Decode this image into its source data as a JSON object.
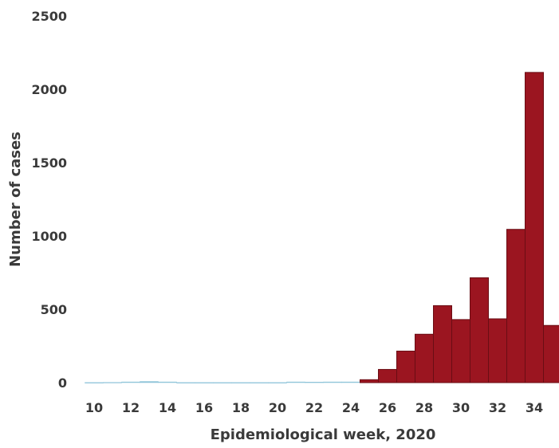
{
  "chart_data": {
    "type": "bar",
    "title": "",
    "xlabel": "Epidemiological week, 2020",
    "ylabel": "Number of cases",
    "ylim": [
      0,
      2500
    ],
    "yticks": [
      0,
      500,
      1000,
      1500,
      2000,
      2500
    ],
    "xticks": [
      10,
      12,
      14,
      16,
      18,
      20,
      22,
      24,
      26,
      28,
      30,
      32,
      34
    ],
    "x": [
      10,
      11,
      12,
      13,
      14,
      15,
      16,
      17,
      18,
      19,
      20,
      21,
      22,
      23,
      24,
      25,
      26,
      27,
      28,
      29,
      30,
      31,
      32,
      33,
      34,
      35
    ],
    "values": [
      1,
      2,
      5,
      8,
      5,
      1,
      1,
      1,
      1,
      1,
      1,
      5,
      4,
      5,
      5,
      20,
      90,
      215,
      330,
      525,
      430,
      715,
      435,
      1045,
      2115,
      390
    ],
    "grid": false,
    "colors": {
      "bar": "#9b1520",
      "bar_stroke": "#6a0d14",
      "small_bar": "#8fc4d9",
      "text": "#3a3a3a"
    }
  }
}
